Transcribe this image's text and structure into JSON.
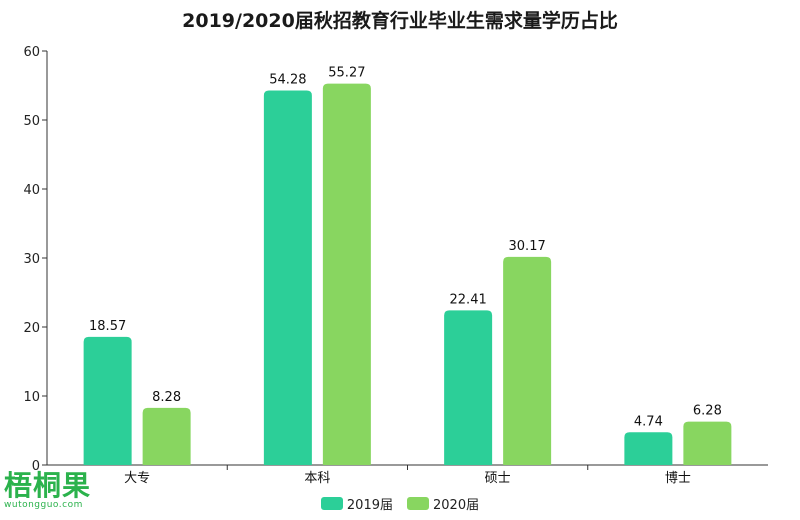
{
  "title": "2019/2020届秋招教育行业毕业生需求量学历占比",
  "colors": {
    "series1": "#2ccf98",
    "series2": "#88d660",
    "axis": "#333333",
    "logo": "#2bb24c"
  },
  "logo": {
    "text": "梧桐果",
    "url": "wutongguo.com"
  },
  "chart_data": {
    "type": "bar",
    "title": "2019/2020届秋招教育行业毕业生需求量学历占比",
    "categories": [
      "大专",
      "本科",
      "硕士",
      "博士"
    ],
    "series": [
      {
        "name": "2019届",
        "values": [
          18.57,
          54.28,
          22.41,
          4.74
        ]
      },
      {
        "name": "2020届",
        "values": [
          8.28,
          55.27,
          30.17,
          6.28
        ]
      }
    ],
    "ylim": [
      0,
      60
    ],
    "yticks": [
      0,
      10,
      20,
      30,
      40,
      50,
      60
    ],
    "xlabel": "",
    "ylabel": "",
    "grid": false,
    "legend": "bottom"
  }
}
